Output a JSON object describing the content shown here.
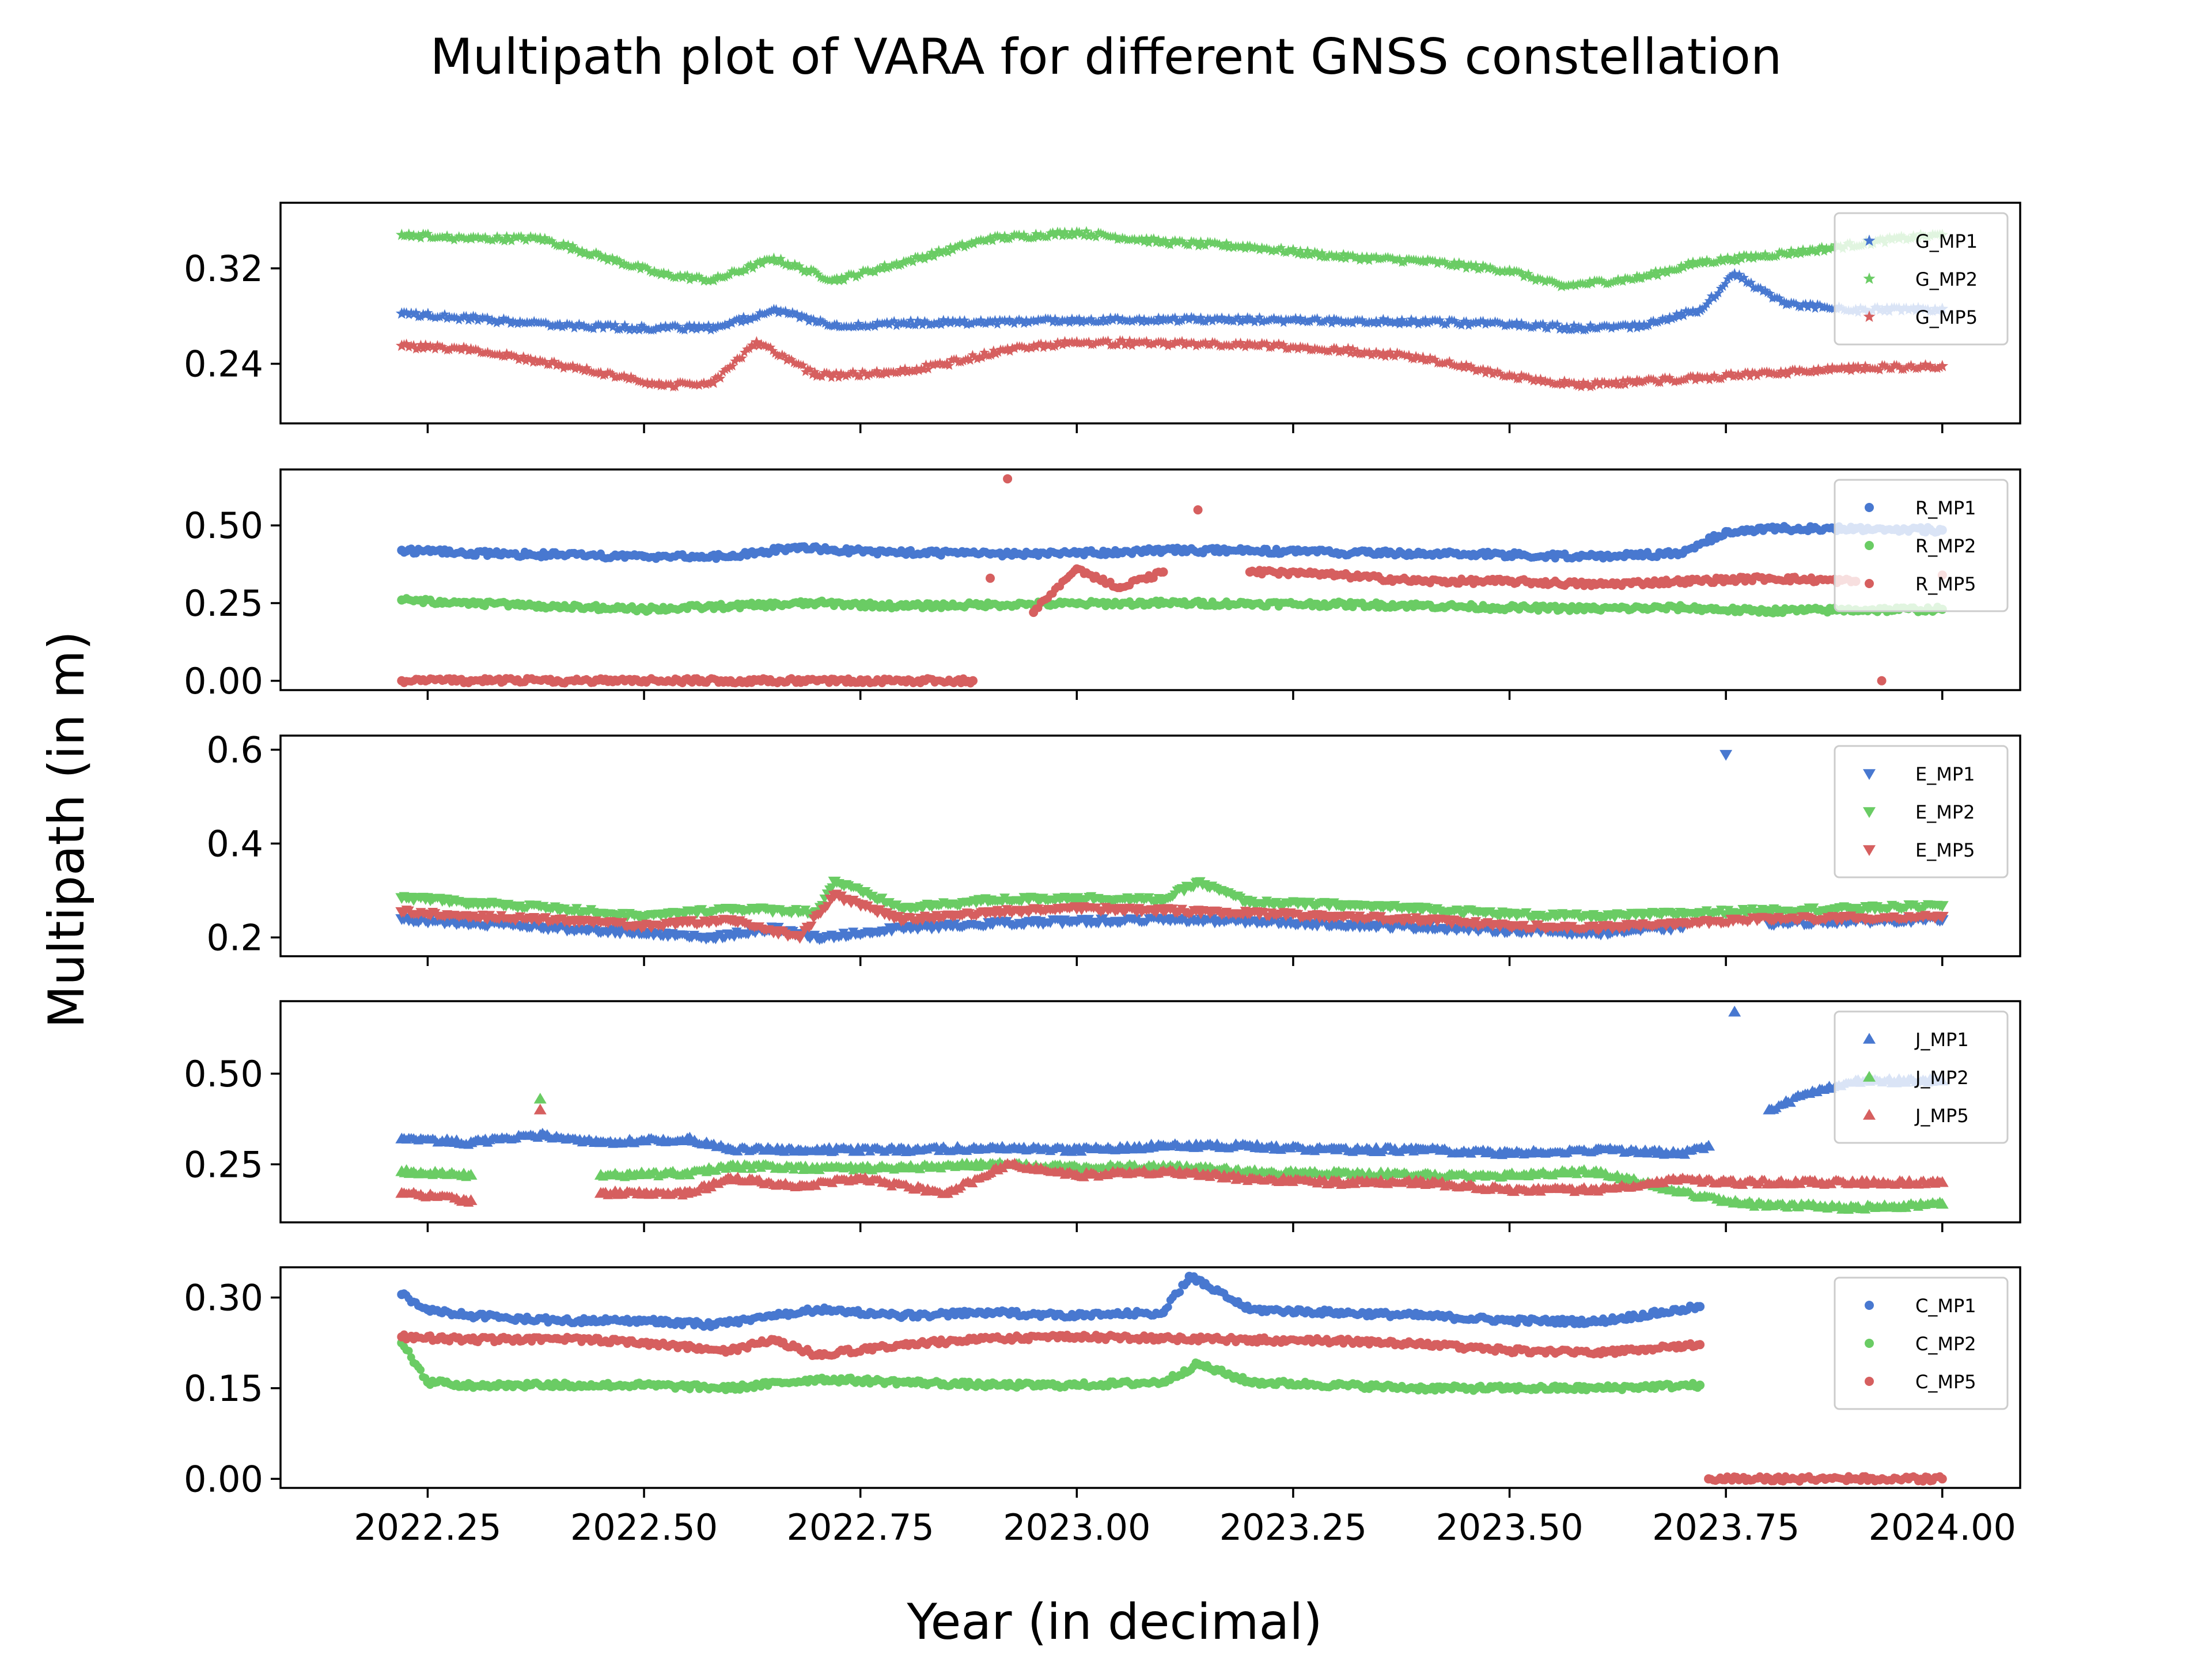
{
  "chart_data": {
    "type": "scatter",
    "title": "Multipath plot of VARA for different GNSS constellation",
    "xlabel": "Year (in decimal)",
    "ylabel": "Multipath (in m)",
    "xlim": [
      2022.08,
      2024.09
    ],
    "xticks": [
      2022.25,
      2022.5,
      2022.75,
      2023.0,
      2023.25,
      2023.5,
      2023.75,
      2024.0
    ],
    "xtick_labels": [
      "2022.25",
      "2022.50",
      "2022.75",
      "2023.00",
      "2023.25",
      "2023.50",
      "2023.75",
      "2024.00"
    ],
    "legend_position": "upper right",
    "colors": {
      "MP1": "#4878d0",
      "MP2": "#6acc64",
      "MP5": "#d65f5f"
    },
    "panels": [
      {
        "constellation": "G",
        "marker": "star",
        "ylim": [
          0.19,
          0.375
        ],
        "yticks": [
          0.24,
          0.32
        ],
        "ytick_labels": [
          "0.24",
          "0.32"
        ],
        "series": [
          {
            "name": "G_MP1",
            "color": "#4878d0",
            "x": [
              2022.22,
              2022.3,
              2022.4,
              2022.5,
              2022.58,
              2022.65,
              2022.72,
              2022.8,
              2022.9,
              2023.0,
              2023.1,
              2023.2,
              2023.3,
              2023.4,
              2023.5,
              2023.58,
              2023.65,
              2023.72,
              2023.76,
              2023.82,
              2023.9,
              2024.0
            ],
            "y": [
              0.282,
              0.278,
              0.272,
              0.27,
              0.27,
              0.285,
              0.272,
              0.274,
              0.275,
              0.276,
              0.277,
              0.277,
              0.276,
              0.275,
              0.273,
              0.27,
              0.272,
              0.285,
              0.315,
              0.29,
              0.285,
              0.286
            ]
          },
          {
            "name": "G_MP2",
            "color": "#6acc64",
            "x": [
              2022.22,
              2022.3,
              2022.38,
              2022.45,
              2022.52,
              2022.58,
              2022.65,
              2022.72,
              2022.8,
              2022.9,
              2023.0,
              2023.1,
              2023.2,
              2023.3,
              2023.4,
              2023.5,
              2023.56,
              2023.65,
              2023.72,
              2023.76,
              2023.85,
              2023.95,
              2024.0
            ],
            "y": [
              0.348,
              0.345,
              0.345,
              0.33,
              0.315,
              0.31,
              0.328,
              0.31,
              0.325,
              0.345,
              0.35,
              0.342,
              0.338,
              0.33,
              0.326,
              0.318,
              0.305,
              0.312,
              0.325,
              0.328,
              0.335,
              0.345,
              0.348
            ]
          },
          {
            "name": "G_MP5",
            "color": "#d65f5f",
            "x": [
              2022.22,
              2022.3,
              2022.38,
              2022.45,
              2022.52,
              2022.58,
              2022.63,
              2022.7,
              2022.78,
              2022.85,
              2022.92,
              2023.0,
              2023.1,
              2023.2,
              2023.3,
              2023.4,
              2023.5,
              2023.58,
              2023.65,
              2023.72,
              2023.8,
              2023.9,
              2024.0
            ],
            "y": [
              0.255,
              0.252,
              0.242,
              0.232,
              0.222,
              0.224,
              0.258,
              0.23,
              0.232,
              0.24,
              0.252,
              0.258,
              0.257,
              0.256,
              0.252,
              0.245,
              0.23,
              0.222,
              0.225,
              0.228,
              0.232,
              0.236,
              0.238
            ]
          }
        ]
      },
      {
        "constellation": "R",
        "marker": "circle",
        "ylim": [
          -0.03,
          0.68
        ],
        "yticks": [
          0.0,
          0.25,
          0.5
        ],
        "ytick_labels": [
          "0.00",
          "0.25",
          "0.50"
        ],
        "series": [
          {
            "name": "R_MP1",
            "color": "#4878d0",
            "x": [
              2022.22,
              2022.3,
              2022.4,
              2022.5,
              2022.6,
              2022.68,
              2022.72,
              2022.8,
              2022.9,
              2023.0,
              2023.1,
              2023.2,
              2023.3,
              2023.4,
              2023.5,
              2023.6,
              2023.7,
              2023.75,
              2023.82,
              2023.9,
              2024.0
            ],
            "y": [
              0.42,
              0.41,
              0.405,
              0.4,
              0.4,
              0.43,
              0.42,
              0.412,
              0.408,
              0.41,
              0.42,
              0.418,
              0.412,
              0.41,
              0.405,
              0.4,
              0.41,
              0.48,
              0.49,
              0.49,
              0.485
            ]
          },
          {
            "name": "R_MP2",
            "color": "#6acc64",
            "x": [
              2022.22,
              2022.3,
              2022.4,
              2022.5,
              2022.6,
              2022.7,
              2022.8,
              2022.9,
              2023.0,
              2023.1,
              2023.2,
              2023.3,
              2023.4,
              2023.5,
              2023.6,
              2023.7,
              2023.78,
              2023.9,
              2024.0
            ],
            "y": [
              0.26,
              0.25,
              0.24,
              0.23,
              0.24,
              0.25,
              0.24,
              0.245,
              0.248,
              0.25,
              0.248,
              0.246,
              0.242,
              0.235,
              0.232,
              0.235,
              0.225,
              0.228,
              0.23
            ]
          },
          {
            "name": "R_MP5",
            "color": "#d65f5f",
            "x": [
              2022.22,
              2022.3,
              2022.4,
              2022.5,
              2022.6,
              2022.7,
              2022.8,
              2022.88,
              2022.9,
              2022.92,
              2022.95,
              2023.0,
              2023.05,
              2023.1,
              2023.14,
              2023.2,
              2023.3,
              2023.4,
              2023.5,
              2023.6,
              2023.7,
              2023.8,
              2023.9,
              2023.93,
              2024.0
            ],
            "y": [
              0.0,
              0.0,
              0.0,
              0.0,
              0.0,
              0.0,
              0.0,
              0.0,
              0.33,
              0.65,
              0.22,
              0.36,
              0.3,
              0.35,
              0.55,
              0.35,
              0.34,
              0.32,
              0.32,
              0.31,
              0.32,
              0.33,
              0.32,
              0.0,
              0.34
            ]
          }
        ]
      },
      {
        "constellation": "E",
        "marker": "triangle-down",
        "ylim": [
          0.16,
          0.63
        ],
        "yticks": [
          0.2,
          0.4,
          0.6
        ],
        "ytick_labels": [
          "0.2",
          "0.4",
          "0.6"
        ],
        "series": [
          {
            "name": "E_MP1",
            "color": "#4878d0",
            "x": [
              2022.22,
              2022.3,
              2022.4,
              2022.5,
              2022.58,
              2022.65,
              2022.7,
              2022.8,
              2022.9,
              2023.0,
              2023.1,
              2023.2,
              2023.3,
              2023.4,
              2023.5,
              2023.6,
              2023.7,
              2023.75,
              2023.8,
              2023.9,
              2024.0
            ],
            "y": [
              0.24,
              0.23,
              0.22,
              0.21,
              0.2,
              0.22,
              0.2,
              0.22,
              0.23,
              0.235,
              0.238,
              0.235,
              0.228,
              0.222,
              0.215,
              0.21,
              0.222,
              0.59,
              0.23,
              0.235,
              0.238
            ]
          },
          {
            "name": "E_MP2",
            "color": "#6acc64",
            "x": [
              2022.22,
              2022.3,
              2022.4,
              2022.5,
              2022.6,
              2022.7,
              2022.72,
              2022.8,
              2022.9,
              2023.0,
              2023.1,
              2023.14,
              2023.2,
              2023.3,
              2023.4,
              2023.5,
              2023.6,
              2023.7,
              2023.8,
              2023.9,
              2024.0
            ],
            "y": [
              0.285,
              0.275,
              0.262,
              0.245,
              0.262,
              0.255,
              0.32,
              0.262,
              0.28,
              0.285,
              0.28,
              0.318,
              0.275,
              0.27,
              0.262,
              0.25,
              0.245,
              0.252,
              0.258,
              0.262,
              0.268
            ]
          },
          {
            "name": "E_MP5",
            "color": "#d65f5f",
            "x": [
              2022.22,
              2022.3,
              2022.4,
              2022.5,
              2022.6,
              2022.68,
              2022.72,
              2022.8,
              2022.9,
              2023.0,
              2023.1,
              2023.2,
              2023.3,
              2023.4,
              2023.5,
              2023.6,
              2023.7,
              2023.8,
              2023.9,
              2024.0
            ],
            "y": [
              0.255,
              0.245,
              0.238,
              0.225,
              0.238,
              0.2,
              0.29,
              0.238,
              0.255,
              0.262,
              0.258,
              0.252,
              0.245,
              0.238,
              0.225,
              0.22,
              0.232,
              0.24,
              0.242,
              0.245
            ]
          }
        ]
      },
      {
        "constellation": "J",
        "marker": "triangle-up",
        "ylim": [
          0.09,
          0.7
        ],
        "yticks": [
          0.25,
          0.5
        ],
        "ytick_labels": [
          "0.25",
          "0.50"
        ],
        "series": [
          {
            "name": "J_MP1",
            "color": "#4878d0",
            "x": [
              2022.22,
              2022.3,
              2022.38,
              2022.45,
              2022.55,
              2022.6,
              2022.7,
              2022.8,
              2022.9,
              2023.0,
              2023.1,
              2023.2,
              2023.3,
              2023.4,
              2023.5,
              2023.6,
              2023.7,
              2023.73,
              2023.76,
              2023.8,
              2023.85,
              2023.9,
              2024.0
            ],
            "y": [
              0.32,
              0.31,
              0.33,
              0.31,
              0.32,
              0.29,
              0.29,
              0.29,
              0.295,
              0.29,
              0.3,
              0.3,
              0.29,
              0.29,
              0.28,
              0.29,
              0.28,
              0.3,
              0.67,
              0.4,
              0.45,
              0.48,
              0.48
            ]
          },
          {
            "name": "J_MP2",
            "color": "#6acc64",
            "x": [
              2022.22,
              2022.3,
              2022.38,
              2022.45,
              2022.55,
              2022.6,
              2022.7,
              2022.8,
              2022.9,
              2023.0,
              2023.1,
              2023.2,
              2023.3,
              2023.4,
              2023.5,
              2023.6,
              2023.72,
              2023.78,
              2023.9,
              2024.0
            ],
            "y": [
              0.23,
              0.22,
              0.43,
              0.22,
              0.225,
              0.245,
              0.24,
              0.24,
              0.25,
              0.24,
              0.245,
              0.23,
              0.225,
              0.22,
              0.22,
              0.23,
              0.16,
              0.14,
              0.13,
              0.14
            ]
          },
          {
            "name": "J_MP5",
            "color": "#d65f5f",
            "x": [
              2022.22,
              2022.3,
              2022.38,
              2022.45,
              2022.55,
              2022.6,
              2022.68,
              2022.75,
              2022.85,
              2022.92,
              2023.0,
              2023.1,
              2023.2,
              2023.3,
              2023.4,
              2023.5,
              2023.6,
              2023.7,
              2023.75,
              2023.85,
              2024.0
            ],
            "y": [
              0.17,
              0.15,
              0.4,
              0.17,
              0.17,
              0.21,
              0.19,
              0.21,
              0.17,
              0.25,
              0.22,
              0.23,
              0.21,
              0.2,
              0.2,
              0.18,
              0.18,
              0.21,
              0.2,
              0.2,
              0.2
            ]
          }
        ]
      },
      {
        "constellation": "C",
        "marker": "circle",
        "ylim": [
          -0.015,
          0.35
        ],
        "yticks": [
          0.0,
          0.15,
          0.3
        ],
        "ytick_labels": [
          "0.00",
          "0.15",
          "0.30"
        ],
        "series": [
          {
            "name": "C_MP1",
            "color": "#4878d0",
            "x": [
              2022.22,
              2022.25,
              2022.3,
              2022.4,
              2022.5,
              2022.58,
              2022.65,
              2022.7,
              2022.8,
              2022.9,
              2023.0,
              2023.1,
              2023.13,
              2023.2,
              2023.3,
              2023.4,
              2023.5,
              2023.6,
              2023.7,
              2023.72
            ],
            "y": [
              0.305,
              0.28,
              0.27,
              0.262,
              0.262,
              0.255,
              0.27,
              0.28,
              0.27,
              0.275,
              0.27,
              0.275,
              0.335,
              0.28,
              0.275,
              0.27,
              0.262,
              0.26,
              0.28,
              0.285
            ]
          },
          {
            "name": "C_MP2",
            "color": "#6acc64",
            "x": [
              2022.22,
              2022.25,
              2022.3,
              2022.4,
              2022.5,
              2022.6,
              2022.7,
              2022.8,
              2022.9,
              2023.0,
              2023.1,
              2023.14,
              2023.2,
              2023.3,
              2023.4,
              2023.5,
              2023.6,
              2023.72
            ],
            "y": [
              0.225,
              0.16,
              0.155,
              0.155,
              0.155,
              0.15,
              0.165,
              0.16,
              0.155,
              0.155,
              0.16,
              0.19,
              0.16,
              0.155,
              0.15,
              0.15,
              0.15,
              0.155
            ]
          },
          {
            "name": "C_MP5",
            "color": "#d65f5f",
            "x": [
              2022.22,
              2022.3,
              2022.4,
              2022.5,
              2022.6,
              2022.65,
              2022.7,
              2022.8,
              2022.9,
              2023.0,
              2023.1,
              2023.2,
              2023.3,
              2023.4,
              2023.5,
              2023.6,
              2023.72,
              2023.73,
              2023.8,
              2023.9,
              2024.0
            ],
            "y": [
              0.235,
              0.23,
              0.232,
              0.225,
              0.212,
              0.23,
              0.205,
              0.222,
              0.232,
              0.235,
              0.232,
              0.23,
              0.228,
              0.222,
              0.212,
              0.208,
              0.222,
              0.0,
              0.0,
              0.0,
              0.0
            ]
          }
        ]
      }
    ]
  }
}
